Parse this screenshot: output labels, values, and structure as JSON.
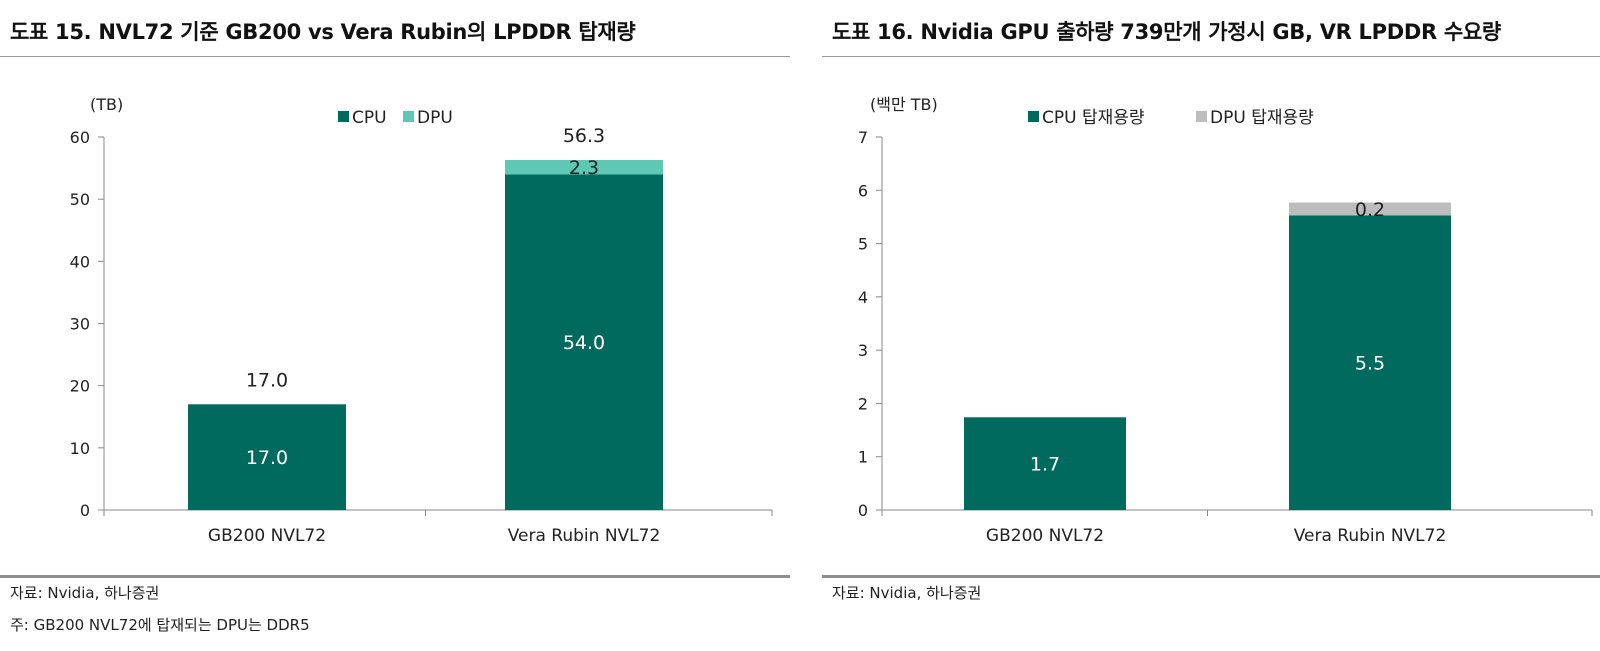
{
  "figures": [
    {
      "title": "도표 15. NVL72 기준 GB200 vs Vera Rubin의 LPDDR 탑재량",
      "unit": "(TB)",
      "notes": [
        "자료: Nvidia, 하나증권",
        "주: GB200 NVL72에 탑재되는 DPU는 DDR5"
      ]
    },
    {
      "title": "도표 16. Nvidia GPU 출하량 739만개 가정시 GB, VR LPDDR 수요량",
      "unit": "(백만 TB)",
      "notes": [
        "자료: Nvidia, 하나증권"
      ]
    }
  ],
  "chart_data": [
    {
      "type": "bar",
      "stacked": true,
      "title": "도표 15. NVL72 기준 GB200 vs Vera Rubin의 LPDDR 탑재량",
      "ylabel": "(TB)",
      "xlabel": "",
      "categories": [
        "GB200 NVL72",
        "Vera Rubin NVL72"
      ],
      "series": [
        {
          "name": "CPU",
          "color": "#006a5e",
          "values": [
            17.0,
            54.0
          ],
          "labels": [
            "17.0",
            "54.0"
          ]
        },
        {
          "name": "DPU",
          "color": "#5fc8b5",
          "values": [
            0,
            2.3
          ],
          "labels": [
            "",
            "2.3"
          ]
        }
      ],
      "totals": [
        "17.0",
        "56.3"
      ],
      "ylim": [
        0,
        60
      ],
      "yticks": [
        0,
        10,
        20,
        30,
        40,
        50,
        60
      ],
      "legend_position": "top-center",
      "grid": false
    },
    {
      "type": "bar",
      "stacked": true,
      "title": "도표 16. Nvidia GPU 출하량 739만개 가정시 GB, VR LPDDR 수요량",
      "ylabel": "(백만 TB)",
      "xlabel": "",
      "categories": [
        "GB200 NVL72",
        "Vera Rubin NVL72"
      ],
      "series": [
        {
          "name": "CPU 탑재용량",
          "color": "#006a5e",
          "values": [
            1.74,
            5.53
          ],
          "labels": [
            "1.7",
            "5.5"
          ]
        },
        {
          "name": "DPU 탑재용량",
          "color": "#bdbdbd",
          "values": [
            0,
            0.24
          ],
          "labels": [
            "",
            "0.2"
          ]
        }
      ],
      "totals": [],
      "ylim": [
        0,
        7
      ],
      "yticks": [
        0,
        1,
        2,
        3,
        4,
        5,
        6,
        7
      ],
      "legend_position": "top-center",
      "grid": false
    }
  ]
}
